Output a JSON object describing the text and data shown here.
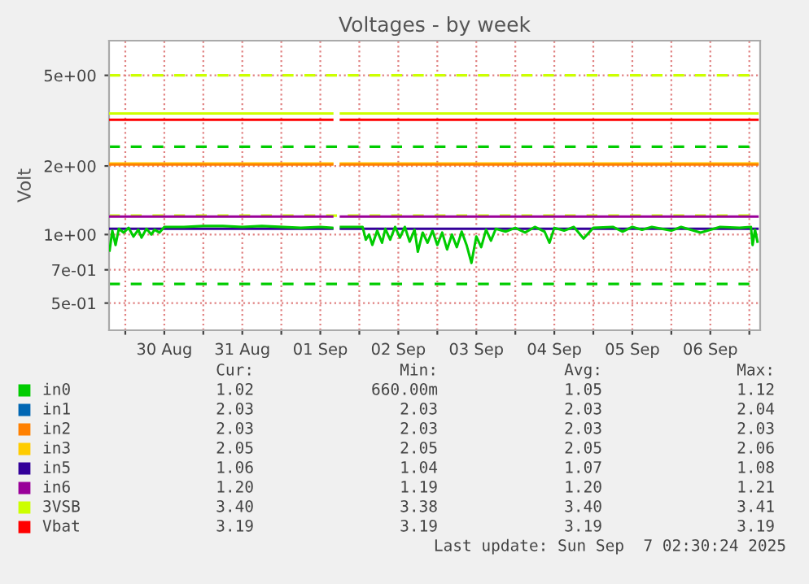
{
  "chart_data": {
    "type": "line",
    "title": "Voltages - by week",
    "ylabel": "Volt",
    "log": true,
    "grid": true,
    "legend": "bottom",
    "line_style": "solid",
    "marker": "none",
    "xlim": [
      "2025-08-29T19:00",
      "2025-09-07T03:20"
    ],
    "xticks": [
      {
        "value": "2025-08-30T00:00",
        "label": null
      },
      {
        "value": "2025-08-30T12:00",
        "label": "30 Aug"
      },
      {
        "value": "2025-08-31T00:00",
        "label": null
      },
      {
        "value": "2025-08-31T12:00",
        "label": "31 Aug"
      },
      {
        "value": "2025-09-01T00:00",
        "label": null
      },
      {
        "value": "2025-09-01T12:00",
        "label": "01 Sep"
      },
      {
        "value": "2025-09-02T00:00",
        "label": null
      },
      {
        "value": "2025-09-02T12:00",
        "label": "02 Sep"
      },
      {
        "value": "2025-09-03T00:00",
        "label": null
      },
      {
        "value": "2025-09-03T12:00",
        "label": "03 Sep"
      },
      {
        "value": "2025-09-04T00:00",
        "label": null
      },
      {
        "value": "2025-09-04T12:00",
        "label": "04 Sep"
      },
      {
        "value": "2025-09-05T00:00",
        "label": null
      },
      {
        "value": "2025-09-05T12:00",
        "label": "05 Sep"
      },
      {
        "value": "2025-09-06T00:00",
        "label": null
      },
      {
        "value": "2025-09-06T12:00",
        "label": "06 Sep"
      },
      {
        "value": "2025-09-07T00:00",
        "label": null
      }
    ],
    "ylim": [
      0.38,
      7.1
    ],
    "yticks": [
      {
        "value": 5,
        "label": "5e+00"
      },
      {
        "value": 2,
        "label": "2e+00"
      },
      {
        "value": 1,
        "label": "1e+00"
      },
      {
        "value": 0.7,
        "label": "7e-01"
      },
      {
        "value": 0.5,
        "label": "5e-01"
      }
    ],
    "series": [
      {
        "name": "in0",
        "color": "#00cc00",
        "x": [
          "2025-08-29T19:10",
          "2025-08-29T20:00",
          "2025-08-29T21:00",
          "2025-08-29T22:00",
          "2025-08-29T23:30",
          "2025-08-30T01:00",
          "2025-08-30T02:30",
          "2025-08-30T04:00",
          "2025-08-30T05:00",
          "2025-08-30T06:30",
          "2025-08-30T08:00",
          "2025-08-30T09:00",
          "2025-08-30T10:30",
          "2025-08-30T12:00",
          "2025-08-30T18:00",
          "2025-08-31T00:00",
          "2025-08-31T06:00",
          "2025-08-31T12:00",
          "2025-08-31T18:00",
          "2025-09-01T06:00",
          "2025-09-01T12:00",
          "2025-09-01T15:40",
          "2025-09-01T17:00",
          "2025-09-01T18:20",
          "2025-09-02T01:00",
          "2025-09-02T02:00",
          "2025-09-02T03:00",
          "2025-09-02T04:00",
          "2025-09-02T05:30",
          "2025-09-02T07:00",
          "2025-09-02T08:00",
          "2025-09-02T09:30",
          "2025-09-02T11:00",
          "2025-09-02T12:30",
          "2025-09-02T14:00",
          "2025-09-02T15:30",
          "2025-09-02T17:00",
          "2025-09-02T18:00",
          "2025-09-02T19:30",
          "2025-09-02T21:00",
          "2025-09-02T22:30",
          "2025-09-03T00:00",
          "2025-09-03T01:30",
          "2025-09-03T03:00",
          "2025-09-03T04:30",
          "2025-09-03T06:00",
          "2025-09-03T07:30",
          "2025-09-03T09:00",
          "2025-09-03T10:30",
          "2025-09-03T12:00",
          "2025-09-03T13:30",
          "2025-09-03T15:00",
          "2025-09-03T16:30",
          "2025-09-03T18:00",
          "2025-09-03T21:00",
          "2025-09-04T00:00",
          "2025-09-04T03:00",
          "2025-09-04T06:00",
          "2025-09-04T09:00",
          "2025-09-04T10:30",
          "2025-09-04T12:00",
          "2025-09-04T15:00",
          "2025-09-04T18:00",
          "2025-09-04T21:00",
          "2025-09-05T00:00",
          "2025-09-05T06:00",
          "2025-09-05T09:00",
          "2025-09-05T12:00",
          "2025-09-05T15:00",
          "2025-09-05T18:00",
          "2025-09-06T00:00",
          "2025-09-06T03:00",
          "2025-09-06T09:00",
          "2025-09-06T15:00",
          "2025-09-06T21:00",
          "2025-09-07T00:30",
          "2025-09-07T01:00",
          "2025-09-07T01:45",
          "2025-09-07T02:30"
        ],
        "values": [
          0.85,
          1.04,
          0.9,
          1.06,
          1.02,
          1.07,
          0.98,
          1.05,
          0.97,
          1.06,
          1.0,
          1.05,
          1.02,
          1.08,
          1.08,
          1.09,
          1.09,
          1.08,
          1.09,
          1.07,
          1.08,
          1.07,
          null,
          1.08,
          1.08,
          0.95,
          1.0,
          0.9,
          1.04,
          0.92,
          1.06,
          0.95,
          1.08,
          0.97,
          1.08,
          0.93,
          1.05,
          0.84,
          1.02,
          0.92,
          1.04,
          0.9,
          1.02,
          0.86,
          1.0,
          0.88,
          1.03,
          0.9,
          0.75,
          0.98,
          0.88,
          1.05,
          0.94,
          1.06,
          1.03,
          1.07,
          1.02,
          1.08,
          1.03,
          0.92,
          1.07,
          1.04,
          1.08,
          0.96,
          1.07,
          1.08,
          1.03,
          1.08,
          1.05,
          1.08,
          1.04,
          1.08,
          1.02,
          1.08,
          1.07,
          1.08,
          0.9,
          1.05,
          0.93
        ]
      },
      {
        "name": "in1",
        "color": "#0066b3",
        "values": [
          null
        ]
      },
      {
        "name": "in2",
        "color": "#ff8000",
        "x": [
          "2025-08-29T19:10",
          "2025-09-01T15:40",
          "2025-09-01T17:00",
          "2025-09-01T18:20",
          "2025-09-07T02:30"
        ],
        "values": [
          2.03,
          2.03,
          null,
          2.03,
          2.03
        ]
      },
      {
        "name": "in3",
        "color": "#ffcc00",
        "x": [
          "2025-08-29T19:10",
          "2025-09-01T15:40",
          "2025-09-01T17:00",
          "2025-09-01T18:20",
          "2025-09-07T02:30"
        ],
        "values": [
          2.05,
          2.05,
          null,
          2.05,
          2.05
        ]
      },
      {
        "name": "in5",
        "color": "#330099",
        "x": [
          "2025-08-29T19:10",
          "2025-09-01T15:40",
          "2025-09-01T17:00",
          "2025-09-01T18:20",
          "2025-09-07T02:30"
        ],
        "values": [
          1.06,
          1.06,
          null,
          1.06,
          1.06
        ]
      },
      {
        "name": "in6",
        "color": "#990099",
        "x": [
          "2025-08-29T19:10",
          "2025-09-01T15:40",
          "2025-09-01T17:00",
          "2025-09-01T18:20",
          "2025-09-07T02:30"
        ],
        "values": [
          1.2,
          1.2,
          null,
          1.2,
          1.2
        ]
      },
      {
        "name": "3VSB",
        "color": "#ccff00",
        "x": [
          "2025-08-29T19:10",
          "2025-09-01T15:40",
          "2025-09-01T17:00",
          "2025-09-01T18:20",
          "2025-09-07T02:30"
        ],
        "values": [
          3.4,
          3.4,
          null,
          3.4,
          3.4
        ]
      },
      {
        "name": "Vbat",
        "color": "#ff0000",
        "x": [
          "2025-08-29T19:10",
          "2025-09-01T15:40",
          "2025-09-01T17:00",
          "2025-09-01T18:20",
          "2025-09-07T02:30"
        ],
        "values": [
          3.19,
          3.19,
          null,
          3.19,
          3.19
        ]
      }
    ],
    "ref_lines": [
      {
        "axis": "y",
        "value": 5,
        "label": null,
        "color": "#ccff00",
        "line_style": "dashed"
      },
      {
        "axis": "y",
        "value": 2.43,
        "label": null,
        "color": "#00cc00",
        "line_style": "dashed"
      },
      {
        "axis": "y",
        "value": 1.21,
        "label": null,
        "color": "#ccff00",
        "line_style": "dashed"
      },
      {
        "axis": "y",
        "value": 0.607,
        "label": null,
        "color": "#00cc00",
        "line_style": "dashed"
      }
    ],
    "annotations": [
      "Cur:",
      "Min:",
      "Avg:",
      "Max:",
      "1.02",
      "660.00m",
      "1.05",
      "1.12",
      "2.03",
      "2.03",
      "2.03",
      "2.04",
      "2.03",
      "2.03",
      "2.03",
      "2.03",
      "2.05",
      "2.05",
      "2.05",
      "2.06",
      "1.06",
      "1.04",
      "1.07",
      "1.08",
      "1.20",
      "1.19",
      "1.20",
      "1.21",
      "3.40",
      "3.38",
      "3.40",
      "3.41",
      "3.19",
      "3.19",
      "3.19",
      "3.19",
      "Last update: Sun Sep  7 02:30:24 2025"
    ]
  }
}
